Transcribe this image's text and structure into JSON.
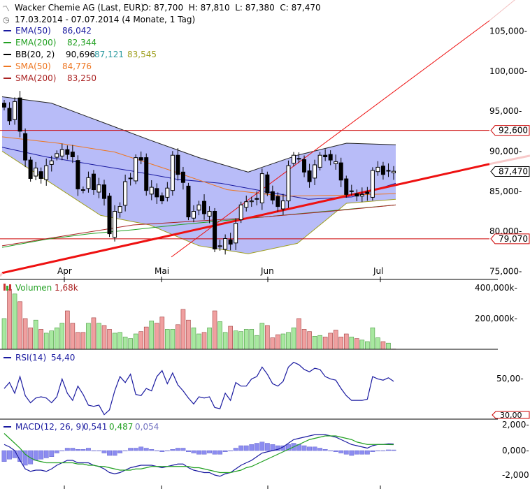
{
  "header": {
    "icon_name": "chart-logo-icon",
    "title": "Wacker Chemie AG (Last, EUR)",
    "ohlc": "O: 87,700  H: 87,810  L: 87,380  C: 87,470",
    "range": "17.03.2014 - 07.07.2014 (4 Monate, 1 Tag)"
  },
  "legend": [
    {
      "name": "EMA(50)",
      "value": "86,042",
      "color": "#1a1aa0"
    },
    {
      "name": "EMA(200)",
      "value": "82,344",
      "color": "#22a022"
    },
    {
      "name": "BB(20, 2)",
      "value": "90,696",
      "extra1": "87,121",
      "extra1_color": "#2a9aa0",
      "extra2": "83,545",
      "extra2_color": "#a0a020",
      "color": "#000000"
    },
    {
      "name": "SMA(50)",
      "value": "84,776",
      "color": "#ee7722"
    },
    {
      "name": "SMA(200)",
      "value": "83,250",
      "color": "#aa2222"
    }
  ],
  "price_axis": {
    "ticks": [
      "105,000-",
      "100,000-",
      "95,000-",
      "90,000-",
      "85,000-",
      "80,000-",
      "75,000-"
    ]
  },
  "markers": [
    {
      "label": "92,600",
      "value": 92.6,
      "color": "#cc0000"
    },
    {
      "label": "87,470",
      "value": 87.47,
      "color": "#000000"
    },
    {
      "label": "79,070",
      "value": 79.07,
      "color": "#cc0000"
    }
  ],
  "x_axis": {
    "labels": [
      "Apr",
      "Mai",
      "Jun",
      "Jul"
    ]
  },
  "volume": {
    "title": "Volumen",
    "value": "1,68k",
    "value_color": "#aa2222",
    "ticks": [
      "400,000k-",
      "200,000k-"
    ]
  },
  "rsi": {
    "title": "RSI(14)",
    "value": "54,40",
    "ticks": [
      "50,00-",
      "30,00"
    ]
  },
  "macd": {
    "title": "MACD(12, 26, 9)",
    "v1": "0,541",
    "v2": "0,487",
    "v3": "0,054",
    "ticks": [
      "2,000-",
      "0,000-",
      "-2,000"
    ]
  },
  "colors": {
    "up": "#ffffff",
    "down": "#000000",
    "band": "#b8bcf8",
    "vol_up": "#a8e8a0",
    "vol_down": "#f0a0a0"
  },
  "chart_data": {
    "type": "candlestick",
    "title": "Wacker Chemie AG (Last, EUR)",
    "x_range": [
      "17.03.2014",
      "07.07.2014"
    ],
    "x_labels": [
      "Apr",
      "Mai",
      "Jun",
      "Jul"
    ],
    "ylim": [
      74,
      108
    ],
    "series": [
      {
        "name": "Close",
        "values": [
          95.5,
          93.8,
          96.2,
          92.5,
          88.9,
          86.6,
          87.9,
          86.6,
          88.2,
          88.8,
          89.7,
          90.2,
          89.6,
          89.3,
          85.3,
          85.2,
          86.7,
          85.2,
          85.8,
          84.1,
          79.7,
          82.5,
          83.1,
          86.2,
          86.6,
          89.2,
          88.9,
          85.1,
          85.5,
          84.3,
          83.8,
          85.4,
          89.5,
          87.1,
          86.1,
          81.8,
          82.5,
          83.3,
          82.2,
          82.5,
          77.8,
          78.2,
          79.1,
          78.4,
          81.0,
          83.3,
          83.7,
          83.8,
          84.0,
          87.2,
          84.8,
          83.9,
          83.1,
          83.8,
          88.2,
          89.5,
          89.1,
          87.4,
          86.2,
          88.3,
          89.5,
          89.3,
          88.9,
          88.7,
          86.4,
          84.6,
          85.0,
          84.4,
          84.6,
          84.7,
          87.6,
          88.0,
          87.1,
          87.6,
          87.5
        ]
      },
      {
        "name": "EMA(50)",
        "values": [
          90.5,
          89.3,
          88.4,
          87.5,
          86.5,
          86.0,
          85.0,
          84.0,
          84.3,
          86.0
        ]
      },
      {
        "name": "EMA(200)",
        "values": [
          78.0,
          79.0,
          79.7,
          80.2,
          80.8,
          81.3,
          81.8,
          82.3,
          82.8,
          83.3
        ]
      },
      {
        "name": "SMA(50)",
        "values": [
          91.8,
          91.0,
          89.9,
          87.6,
          85.2,
          84.4,
          84.5,
          84.7
        ]
      },
      {
        "name": "SMA(200)",
        "values": [
          78.2,
          79.5,
          80.8,
          81.3,
          81.8,
          82.5,
          83.3
        ]
      }
    ],
    "bollinger_upper": [
      96.8,
      96.0,
      93.7,
      91.4,
      89.2,
      87.4,
      89.5,
      91.0,
      90.8
    ],
    "bollinger_lower": [
      90.0,
      86.0,
      82.0,
      80.8,
      78.2,
      77.2,
      78.5,
      83.5,
      84.0
    ],
    "horizontal_lines": [
      92.6,
      79.07
    ],
    "trend_lines": [
      {
        "from": [
          0,
          74.8
        ],
        "to": [
          1,
          88.4
        ]
      },
      {
        "from": [
          0.43,
          76.8
        ],
        "to": [
          1,
          106.3
        ]
      }
    ],
    "volume_k": [
      200,
      390,
      360,
      310,
      200,
      140,
      190,
      130,
      105,
      120,
      140,
      170,
      250,
      170,
      110,
      110,
      170,
      205,
      170,
      155,
      130,
      105,
      110,
      80,
      70,
      100,
      115,
      145,
      185,
      170,
      210,
      130,
      130,
      160,
      260,
      190,
      140,
      100,
      110,
      140,
      250,
      180,
      110,
      150,
      120,
      115,
      130,
      130,
      90,
      170,
      155,
      75,
      95,
      100,
      110,
      140,
      200,
      130,
      115,
      85,
      90,
      80,
      105,
      125,
      80,
      100,
      80,
      70,
      60,
      50,
      140,
      75,
      50,
      40,
      2
    ],
    "rsi_values": [
      50,
      55,
      46,
      60,
      44,
      38,
      42,
      43,
      42,
      38,
      43,
      58,
      46,
      40,
      52,
      45,
      36,
      35,
      36,
      28,
      32,
      48,
      60,
      55,
      62,
      45,
      44,
      50,
      48,
      60,
      65,
      54,
      63,
      53,
      48,
      42,
      37,
      43,
      42,
      43,
      34,
      33,
      46,
      40,
      55,
      52,
      52,
      58,
      60,
      68,
      62,
      54,
      52,
      56,
      68,
      72,
      70,
      66,
      64,
      67,
      66,
      60,
      58,
      57,
      50,
      44,
      40,
      40,
      40,
      41,
      60,
      58,
      57,
      59,
      56
    ],
    "macd_line": [
      0.5,
      0.3,
      0.0,
      -0.8,
      -1.5,
      -1.7,
      -1.6,
      -1.6,
      -1.7,
      -1.5,
      -1.2,
      -1.0,
      -0.8,
      -0.8,
      -1.0,
      -1.0,
      -1.0,
      -1.2,
      -1.3,
      -1.5,
      -1.8,
      -1.9,
      -1.8,
      -1.6,
      -1.4,
      -1.3,
      -1.2,
      -1.2,
      -1.2,
      -1.3,
      -1.4,
      -1.3,
      -1.2,
      -1.1,
      -1.1,
      -1.4,
      -1.6,
      -1.7,
      -1.8,
      -1.8,
      -2.0,
      -2.1,
      -1.9,
      -1.8,
      -1.5,
      -1.2,
      -1.0,
      -0.8,
      -0.5,
      -0.2,
      -0.1,
      0.0,
      0.1,
      0.3,
      0.6,
      0.9,
      1.0,
      1.1,
      1.2,
      1.3,
      1.3,
      1.3,
      1.2,
      1.1,
      0.9,
      0.7,
      0.5,
      0.4,
      0.3,
      0.2,
      0.4,
      0.5,
      0.5,
      0.55,
      0.54
    ],
    "macd_signal": [
      1.4,
      1.0,
      0.6,
      0.2,
      -0.3,
      -0.6,
      -0.8,
      -0.9,
      -1.0,
      -1.0,
      -1.0,
      -1.0,
      -1.0,
      -1.0,
      -1.1,
      -1.1,
      -1.2,
      -1.2,
      -1.3,
      -1.3,
      -1.4,
      -1.5,
      -1.6,
      -1.6,
      -1.6,
      -1.5,
      -1.5,
      -1.4,
      -1.3,
      -1.3,
      -1.3,
      -1.3,
      -1.3,
      -1.3,
      -1.3,
      -1.3,
      -1.4,
      -1.4,
      -1.5,
      -1.6,
      -1.7,
      -1.8,
      -1.8,
      -1.8,
      -1.7,
      -1.6,
      -1.4,
      -1.3,
      -1.1,
      -0.9,
      -0.7,
      -0.5,
      -0.3,
      -0.1,
      0.1,
      0.3,
      0.5,
      0.7,
      0.9,
      1.0,
      1.1,
      1.2,
      1.2,
      1.2,
      1.1,
      1.0,
      0.9,
      0.7,
      0.6,
      0.5,
      0.5,
      0.5,
      0.5,
      0.49,
      0.487
    ],
    "macd_hist": [
      -0.9,
      -0.7,
      -0.6,
      -0.9,
      -1.2,
      -1.1,
      -0.8,
      -0.7,
      -0.6,
      -0.5,
      -0.2,
      0.0,
      0.2,
      0.2,
      0.1,
      0.1,
      0.2,
      0.0,
      0.0,
      -0.2,
      -0.4,
      -0.4,
      -0.2,
      0.0,
      0.2,
      0.2,
      0.3,
      0.2,
      0.1,
      0.0,
      -0.1,
      0.0,
      0.1,
      0.2,
      0.2,
      -0.1,
      -0.2,
      -0.3,
      -0.3,
      -0.2,
      -0.3,
      -0.3,
      -0.1,
      0.0,
      0.2,
      0.4,
      0.4,
      0.5,
      0.6,
      0.7,
      0.6,
      0.5,
      0.4,
      0.4,
      0.5,
      0.6,
      0.5,
      0.4,
      0.3,
      0.3,
      0.2,
      0.1,
      0.0,
      -0.1,
      -0.2,
      -0.3,
      -0.4,
      -0.3,
      -0.3,
      -0.3,
      -0.1,
      0.0,
      0.0,
      0.06,
      0.054
    ]
  }
}
